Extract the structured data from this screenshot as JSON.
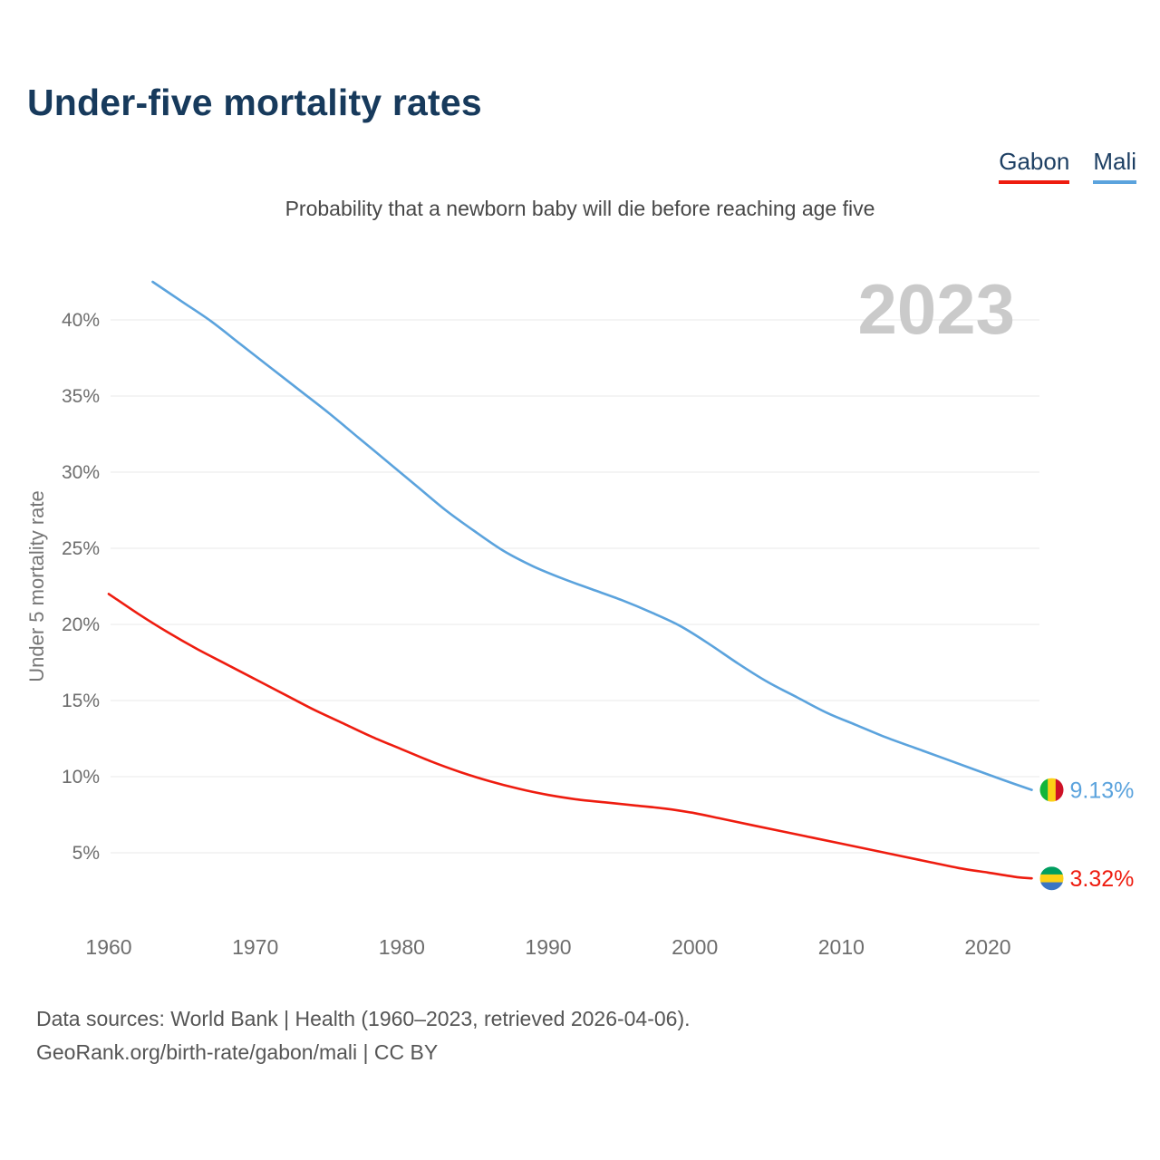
{
  "page": {
    "title": "Under-five mortality rates",
    "subtitle": "Probability that a newborn baby will die before reaching age five",
    "watermark": "2023",
    "footer_line1": "Data sources: World Bank | Health (1960–2023, retrieved 2026-04-06).",
    "footer_line2": "GeoRank.org/birth-rate/gabon/mali | CC BY"
  },
  "legend": [
    {
      "label": "Gabon",
      "color": "#ee1c0f"
    },
    {
      "label": "Mali",
      "color": "#5ba3dd"
    }
  ],
  "chart_data": {
    "type": "line",
    "title": "Under-five mortality rates",
    "subtitle": "Probability that a newborn baby will die before reaching age five",
    "xlabel": "",
    "ylabel": "Under 5 mortality rate",
    "x_ticks": [
      1960,
      1970,
      1980,
      1990,
      2000,
      2010,
      2020
    ],
    "y_ticks": [
      5,
      10,
      15,
      20,
      25,
      30,
      35,
      40
    ],
    "y_tick_format": "percent",
    "xlim": [
      1958,
      2026
    ],
    "ylim": [
      2,
      44
    ],
    "grid": true,
    "legend_position": "top-right",
    "watermark": "2023",
    "series": [
      {
        "name": "Mali",
        "color": "#5ba3dd",
        "end_label": "9.13%",
        "flag": "mali",
        "x": [
          1963,
          1965,
          1967,
          1969,
          1971,
          1973,
          1975,
          1977,
          1979,
          1981,
          1983,
          1985,
          1987,
          1989,
          1991,
          1993,
          1995,
          1997,
          1999,
          2001,
          2003,
          2005,
          2007,
          2009,
          2011,
          2013,
          2015,
          2017,
          2019,
          2021,
          2023
        ],
        "values": [
          42.5,
          41.2,
          39.9,
          38.4,
          36.9,
          35.4,
          33.9,
          32.3,
          30.7,
          29.1,
          27.5,
          26.1,
          24.8,
          23.8,
          23.0,
          22.3,
          21.6,
          20.8,
          19.9,
          18.7,
          17.4,
          16.2,
          15.2,
          14.2,
          13.4,
          12.6,
          11.9,
          11.2,
          10.5,
          9.8,
          9.13
        ]
      },
      {
        "name": "Gabon",
        "color": "#ee1c0f",
        "end_label": "3.32%",
        "flag": "gabon",
        "x": [
          1960,
          1962,
          1964,
          1966,
          1968,
          1970,
          1972,
          1974,
          1976,
          1978,
          1980,
          1982,
          1984,
          1986,
          1988,
          1990,
          1992,
          1994,
          1996,
          1998,
          2000,
          2002,
          2004,
          2006,
          2008,
          2010,
          2012,
          2014,
          2016,
          2018,
          2020,
          2022,
          2023
        ],
        "values": [
          22.0,
          20.7,
          19.5,
          18.4,
          17.4,
          16.4,
          15.4,
          14.4,
          13.5,
          12.6,
          11.8,
          11.0,
          10.3,
          9.7,
          9.2,
          8.8,
          8.5,
          8.3,
          8.1,
          7.9,
          7.6,
          7.2,
          6.8,
          6.4,
          6.0,
          5.6,
          5.2,
          4.8,
          4.4,
          4.0,
          3.7,
          3.4,
          3.32
        ]
      }
    ],
    "flags": {
      "mali": {
        "orientation": "vertical",
        "colors": [
          "#14b53a",
          "#fcd116",
          "#ce1126"
        ]
      },
      "gabon": {
        "orientation": "horizontal",
        "colors": [
          "#009e60",
          "#fcd116",
          "#3a75c4"
        ]
      }
    }
  }
}
